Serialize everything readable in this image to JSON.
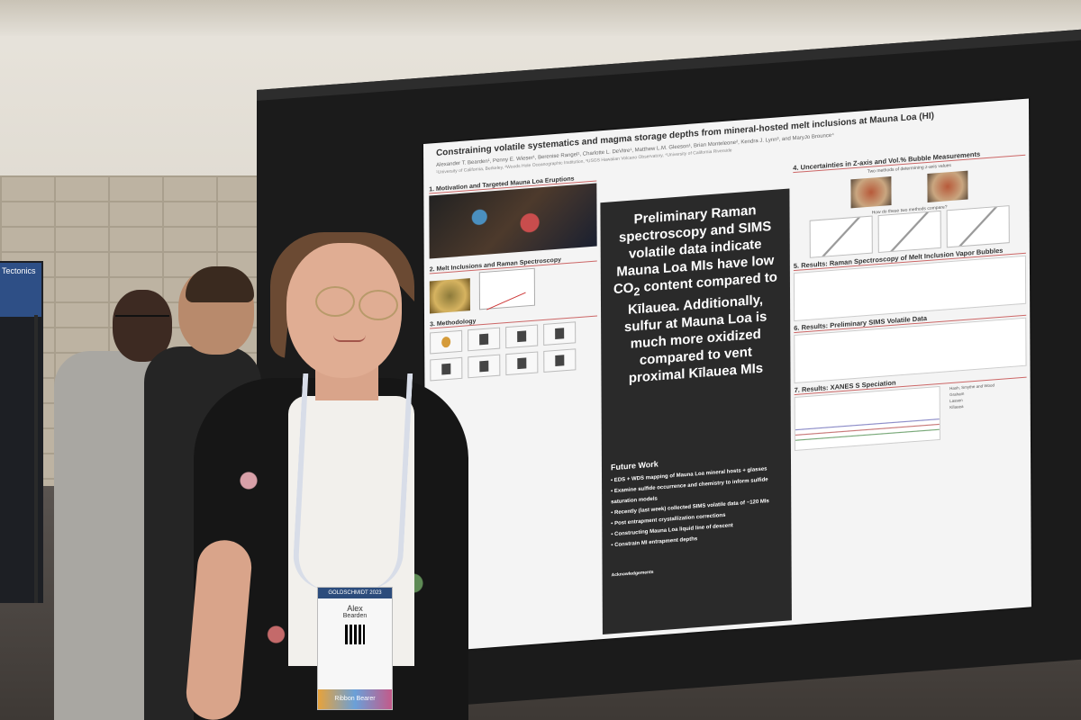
{
  "side_banner": "Tectonics",
  "poster": {
    "title": "Constraining volatile systematics and magma storage depths from mineral-hosted melt inclusions at Mauna Loa (HI)",
    "authors": "Alexander T. Bearden¹, Penny E. Wieser¹, Berenise Rangel¹, Charlotte L. DeVitre¹, Matthew L.M. Gleeson¹, Brian Monteleone², Kendra J. Lynn³, and MaryJo Brounce⁴",
    "affiliations": "¹University of California, Berkeley, ²Woods Hole Oceanographic Institution, ³USGS Hawaiian Volcano Observatory, ⁴University of California Riverside",
    "left_sections": [
      "1. Motivation and Targeted Mauna Loa Eruptions",
      "2. Melt Inclusions and Raman Spectroscopy",
      "3. Methodology"
    ],
    "headline_parts": {
      "a": "Preliminary Raman spectroscopy and SIMS volatile data indicate Mauna Loa MIs have low CO",
      "sub": "2",
      "b": " content compared to Kīlauea. Additionally, sulfur at Mauna Loa is much more oxidized compared to vent proximal Kīlauea MIs"
    },
    "future_work_title": "Future Work",
    "future_work_items": [
      "• EDS + WDS mapping of Mauna Loa mineral hosts + glasses",
      "• Examine sulfide occurrence and chemistry to inform sulfide saturation models",
      "• Recently (last week) collected SIMS volatile data of ~120 MIs",
      "• Post entrapment crystallization corrections",
      "• Constructing Mauna Loa liquid line of descent",
      "• Constrain MI entrapment depths"
    ],
    "acknowledgements": "Acknowledgements",
    "right_sections": [
      "4. Uncertainties in Z-axis and Vol.% Bubble Measurements",
      "5. Results: Raman Spectroscopy of Melt Inclusion Vapor Bubbles",
      "6. Results: Preliminary SIMS Volatile Data",
      "7. Results: XANES S Speciation"
    ],
    "right_note_methods": "Two methods of determining z-axis values",
    "right_note_compare": "How do these two methods compare?",
    "xanes_labels": [
      "Hash, Smythe and Wood",
      "Graham",
      "Lassen",
      "Kīlauea"
    ]
  },
  "badge": {
    "header": "GOLDSCHMIDT 2023",
    "name_first": "Alex",
    "name_last": "Bearden",
    "ribbon": "Ribbon Bearer"
  }
}
